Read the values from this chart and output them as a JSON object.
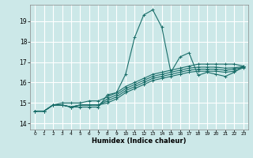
{
  "title": "",
  "xlabel": "Humidex (Indice chaleur)",
  "background_color": "#cce8e8",
  "grid_color": "#ffffff",
  "line_color": "#1a6e6a",
  "xlim": [
    -0.5,
    23.5
  ],
  "ylim": [
    13.7,
    19.8
  ],
  "yticks": [
    14,
    15,
    16,
    17,
    18,
    19
  ],
  "xticks": [
    0,
    1,
    2,
    3,
    4,
    5,
    6,
    7,
    8,
    9,
    10,
    11,
    12,
    13,
    14,
    15,
    16,
    17,
    18,
    19,
    20,
    21,
    22,
    23
  ],
  "series": [
    [
      14.6,
      14.6,
      14.9,
      14.9,
      14.8,
      14.8,
      14.8,
      14.8,
      15.4,
      15.5,
      16.4,
      18.2,
      19.3,
      19.55,
      18.7,
      16.5,
      17.25,
      17.45,
      16.35,
      16.5,
      16.4,
      16.3,
      16.5,
      16.8
    ],
    [
      14.6,
      14.6,
      14.9,
      15.0,
      15.0,
      15.0,
      15.1,
      15.1,
      15.3,
      15.5,
      15.8,
      16.0,
      16.2,
      16.4,
      16.5,
      16.6,
      16.7,
      16.8,
      16.9,
      16.9,
      16.9,
      16.9,
      16.9,
      16.8
    ],
    [
      14.6,
      14.6,
      14.9,
      14.9,
      14.8,
      14.9,
      14.9,
      14.9,
      15.2,
      15.4,
      15.7,
      15.9,
      16.1,
      16.3,
      16.4,
      16.5,
      16.6,
      16.7,
      16.75,
      16.75,
      16.75,
      16.7,
      16.72,
      16.78
    ],
    [
      14.6,
      14.6,
      14.9,
      14.9,
      14.8,
      14.9,
      14.9,
      14.9,
      15.1,
      15.3,
      15.6,
      15.8,
      16.0,
      16.2,
      16.3,
      16.4,
      16.5,
      16.6,
      16.65,
      16.65,
      16.65,
      16.6,
      16.65,
      16.75
    ],
    [
      14.6,
      14.6,
      14.9,
      14.9,
      14.8,
      14.9,
      14.9,
      14.9,
      15.0,
      15.2,
      15.5,
      15.7,
      15.9,
      16.1,
      16.2,
      16.3,
      16.4,
      16.5,
      16.55,
      16.55,
      16.55,
      16.5,
      16.55,
      16.72
    ]
  ],
  "figsize": [
    3.2,
    2.0
  ],
  "dpi": 100
}
